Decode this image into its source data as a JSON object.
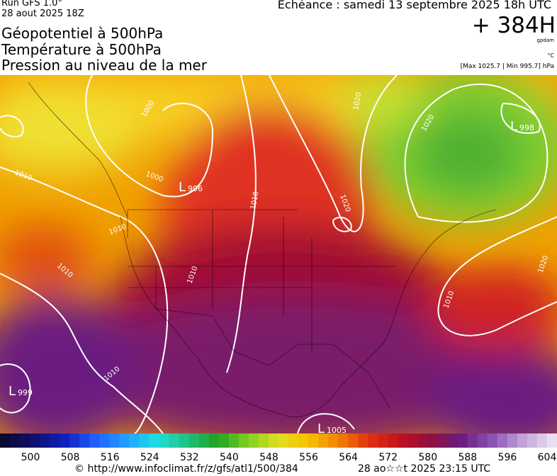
{
  "header": {
    "run": "Run GFS 1.0°",
    "date": "28 aout 2025 18Z",
    "valid": "Echéance : samedi 13 septembre 2025 18h UTC",
    "lead": "+ 384H",
    "unit_geo": "gpdam",
    "unit_temp": "°C",
    "range": "[Max 1025.7 | Min 995.7] hPa"
  },
  "titles": [
    "Géopotentiel à 500hPa",
    "Température à 500hPa",
    "Pression au niveau de la mer"
  ],
  "map_labels": {
    "lows": [
      {
        "symbol": "L",
        "value": "998"
      },
      {
        "symbol": "L",
        "value": "996"
      },
      {
        "symbol": "L",
        "value": "999"
      },
      {
        "symbol": "L",
        "value": "1005"
      }
    ],
    "isobars": [
      "1000",
      "1000",
      "1010",
      "1010",
      "1010",
      "1010",
      "1010",
      "1010",
      "1020",
      "1020",
      "1020",
      "1020",
      "1010"
    ]
  },
  "colorbar": {
    "labels": [
      "500",
      "508",
      "516",
      "524",
      "532",
      "540",
      "548",
      "556",
      "564",
      "572",
      "580",
      "588",
      "596",
      "604"
    ]
  },
  "footer": {
    "url": "© http://www.infoclimat.fr/z/gfs/atl1/500/384",
    "timestamp": "28 ao☆☆t 2025 23:15 UTC"
  }
}
